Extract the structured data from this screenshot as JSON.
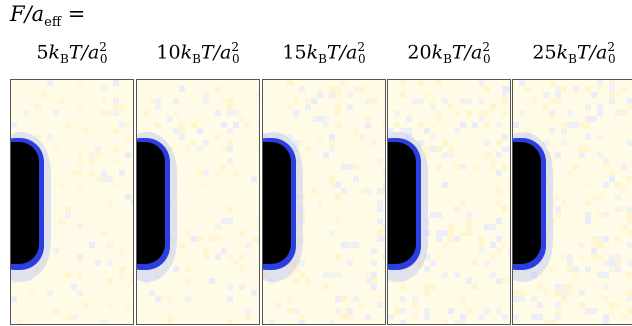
{
  "header": {
    "lhs_var": "F/a",
    "lhs_sub": "eff",
    "equals": "="
  },
  "panels": [
    {
      "coef": "5",
      "k": "k",
      "k_sub": "B",
      "T": "T/a",
      "a_sub": "0",
      "a_sup": "2",
      "noise": 0.25
    },
    {
      "coef": "10",
      "k": "k",
      "k_sub": "B",
      "T": "T/a",
      "a_sub": "0",
      "a_sup": "2",
      "noise": 0.45
    },
    {
      "coef": "15",
      "k": "k",
      "k_sub": "B",
      "T": "T/a",
      "a_sub": "0",
      "a_sup": "2",
      "noise": 0.6
    },
    {
      "coef": "20",
      "k": "k",
      "k_sub": "B",
      "T": "T/a",
      "a_sub": "0",
      "a_sup": "2",
      "noise": 0.8
    },
    {
      "coef": "25",
      "k": "k",
      "k_sub": "B",
      "T": "T/a",
      "a_sub": "0",
      "a_sup": "2",
      "noise": 1.0
    }
  ],
  "colors": {
    "background": "#fffbe6",
    "obstacle": "#000000",
    "edge": "#2b3fe0",
    "halo": "#aab6f5"
  }
}
